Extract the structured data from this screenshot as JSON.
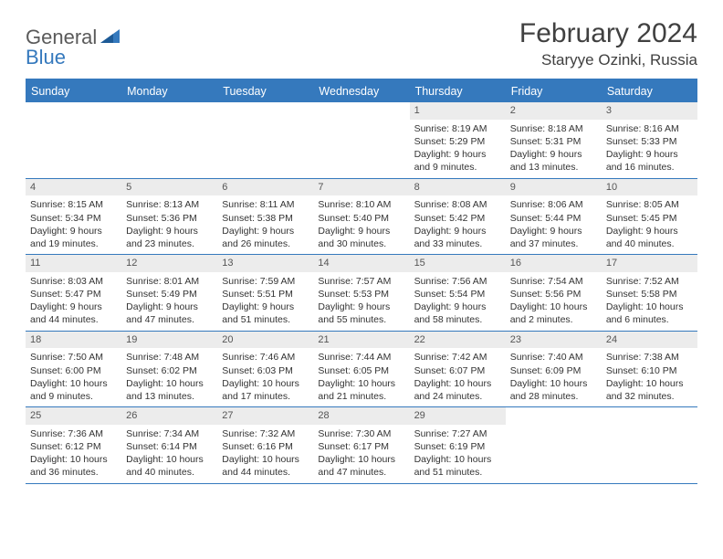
{
  "logo": {
    "part1": "General",
    "part2": "Blue"
  },
  "title": "February 2024",
  "location": "Staryye Ozinki, Russia",
  "colors": {
    "accent": "#3579bd",
    "header_bg": "#3579bd",
    "header_fg": "#ffffff",
    "daynum_bg": "#ececec",
    "text": "#333333"
  },
  "day_headers": [
    "Sunday",
    "Monday",
    "Tuesday",
    "Wednesday",
    "Thursday",
    "Friday",
    "Saturday"
  ],
  "weeks": [
    [
      {
        "n": "",
        "sunrise": "",
        "sunset": "",
        "daylight": ""
      },
      {
        "n": "",
        "sunrise": "",
        "sunset": "",
        "daylight": ""
      },
      {
        "n": "",
        "sunrise": "",
        "sunset": "",
        "daylight": ""
      },
      {
        "n": "",
        "sunrise": "",
        "sunset": "",
        "daylight": ""
      },
      {
        "n": "1",
        "sunrise": "Sunrise: 8:19 AM",
        "sunset": "Sunset: 5:29 PM",
        "daylight": "Daylight: 9 hours and 9 minutes."
      },
      {
        "n": "2",
        "sunrise": "Sunrise: 8:18 AM",
        "sunset": "Sunset: 5:31 PM",
        "daylight": "Daylight: 9 hours and 13 minutes."
      },
      {
        "n": "3",
        "sunrise": "Sunrise: 8:16 AM",
        "sunset": "Sunset: 5:33 PM",
        "daylight": "Daylight: 9 hours and 16 minutes."
      }
    ],
    [
      {
        "n": "4",
        "sunrise": "Sunrise: 8:15 AM",
        "sunset": "Sunset: 5:34 PM",
        "daylight": "Daylight: 9 hours and 19 minutes."
      },
      {
        "n": "5",
        "sunrise": "Sunrise: 8:13 AM",
        "sunset": "Sunset: 5:36 PM",
        "daylight": "Daylight: 9 hours and 23 minutes."
      },
      {
        "n": "6",
        "sunrise": "Sunrise: 8:11 AM",
        "sunset": "Sunset: 5:38 PM",
        "daylight": "Daylight: 9 hours and 26 minutes."
      },
      {
        "n": "7",
        "sunrise": "Sunrise: 8:10 AM",
        "sunset": "Sunset: 5:40 PM",
        "daylight": "Daylight: 9 hours and 30 minutes."
      },
      {
        "n": "8",
        "sunrise": "Sunrise: 8:08 AM",
        "sunset": "Sunset: 5:42 PM",
        "daylight": "Daylight: 9 hours and 33 minutes."
      },
      {
        "n": "9",
        "sunrise": "Sunrise: 8:06 AM",
        "sunset": "Sunset: 5:44 PM",
        "daylight": "Daylight: 9 hours and 37 minutes."
      },
      {
        "n": "10",
        "sunrise": "Sunrise: 8:05 AM",
        "sunset": "Sunset: 5:45 PM",
        "daylight": "Daylight: 9 hours and 40 minutes."
      }
    ],
    [
      {
        "n": "11",
        "sunrise": "Sunrise: 8:03 AM",
        "sunset": "Sunset: 5:47 PM",
        "daylight": "Daylight: 9 hours and 44 minutes."
      },
      {
        "n": "12",
        "sunrise": "Sunrise: 8:01 AM",
        "sunset": "Sunset: 5:49 PM",
        "daylight": "Daylight: 9 hours and 47 minutes."
      },
      {
        "n": "13",
        "sunrise": "Sunrise: 7:59 AM",
        "sunset": "Sunset: 5:51 PM",
        "daylight": "Daylight: 9 hours and 51 minutes."
      },
      {
        "n": "14",
        "sunrise": "Sunrise: 7:57 AM",
        "sunset": "Sunset: 5:53 PM",
        "daylight": "Daylight: 9 hours and 55 minutes."
      },
      {
        "n": "15",
        "sunrise": "Sunrise: 7:56 AM",
        "sunset": "Sunset: 5:54 PM",
        "daylight": "Daylight: 9 hours and 58 minutes."
      },
      {
        "n": "16",
        "sunrise": "Sunrise: 7:54 AM",
        "sunset": "Sunset: 5:56 PM",
        "daylight": "Daylight: 10 hours and 2 minutes."
      },
      {
        "n": "17",
        "sunrise": "Sunrise: 7:52 AM",
        "sunset": "Sunset: 5:58 PM",
        "daylight": "Daylight: 10 hours and 6 minutes."
      }
    ],
    [
      {
        "n": "18",
        "sunrise": "Sunrise: 7:50 AM",
        "sunset": "Sunset: 6:00 PM",
        "daylight": "Daylight: 10 hours and 9 minutes."
      },
      {
        "n": "19",
        "sunrise": "Sunrise: 7:48 AM",
        "sunset": "Sunset: 6:02 PM",
        "daylight": "Daylight: 10 hours and 13 minutes."
      },
      {
        "n": "20",
        "sunrise": "Sunrise: 7:46 AM",
        "sunset": "Sunset: 6:03 PM",
        "daylight": "Daylight: 10 hours and 17 minutes."
      },
      {
        "n": "21",
        "sunrise": "Sunrise: 7:44 AM",
        "sunset": "Sunset: 6:05 PM",
        "daylight": "Daylight: 10 hours and 21 minutes."
      },
      {
        "n": "22",
        "sunrise": "Sunrise: 7:42 AM",
        "sunset": "Sunset: 6:07 PM",
        "daylight": "Daylight: 10 hours and 24 minutes."
      },
      {
        "n": "23",
        "sunrise": "Sunrise: 7:40 AM",
        "sunset": "Sunset: 6:09 PM",
        "daylight": "Daylight: 10 hours and 28 minutes."
      },
      {
        "n": "24",
        "sunrise": "Sunrise: 7:38 AM",
        "sunset": "Sunset: 6:10 PM",
        "daylight": "Daylight: 10 hours and 32 minutes."
      }
    ],
    [
      {
        "n": "25",
        "sunrise": "Sunrise: 7:36 AM",
        "sunset": "Sunset: 6:12 PM",
        "daylight": "Daylight: 10 hours and 36 minutes."
      },
      {
        "n": "26",
        "sunrise": "Sunrise: 7:34 AM",
        "sunset": "Sunset: 6:14 PM",
        "daylight": "Daylight: 10 hours and 40 minutes."
      },
      {
        "n": "27",
        "sunrise": "Sunrise: 7:32 AM",
        "sunset": "Sunset: 6:16 PM",
        "daylight": "Daylight: 10 hours and 44 minutes."
      },
      {
        "n": "28",
        "sunrise": "Sunrise: 7:30 AM",
        "sunset": "Sunset: 6:17 PM",
        "daylight": "Daylight: 10 hours and 47 minutes."
      },
      {
        "n": "29",
        "sunrise": "Sunrise: 7:27 AM",
        "sunset": "Sunset: 6:19 PM",
        "daylight": "Daylight: 10 hours and 51 minutes."
      },
      {
        "n": "",
        "sunrise": "",
        "sunset": "",
        "daylight": ""
      },
      {
        "n": "",
        "sunrise": "",
        "sunset": "",
        "daylight": ""
      }
    ]
  ]
}
